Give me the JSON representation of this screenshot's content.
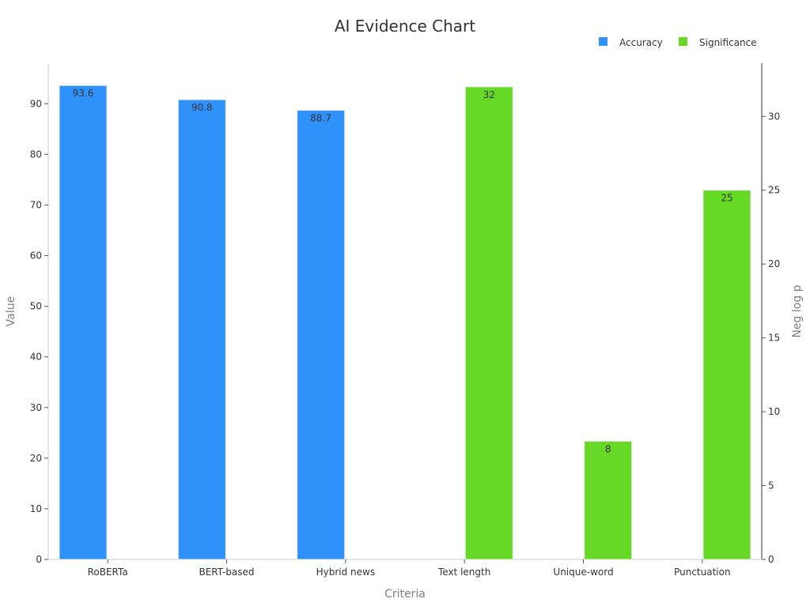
{
  "chart_data": {
    "type": "bar",
    "title": "AI Evidence Chart",
    "xlabel": "Criteria",
    "ylabel": "Value",
    "y2label": "Neg log p",
    "categories": [
      "RoBERTa",
      "BERT-based",
      "Hybrid news",
      "Text length",
      "Unique-word",
      "Punctuation"
    ],
    "series": [
      {
        "name": "Accuracy",
        "axis": "left",
        "color": "#2f91fa",
        "values": [
          93.6,
          90.8,
          88.7,
          null,
          null,
          null
        ],
        "labels": [
          "93.6",
          "90.8",
          "88.7",
          "",
          "",
          ""
        ]
      },
      {
        "name": "Significance",
        "axis": "right",
        "color": "#66d926",
        "values": [
          null,
          null,
          null,
          32,
          8,
          25
        ],
        "labels": [
          "",
          "",
          "",
          "32",
          "8",
          "25"
        ]
      }
    ],
    "ylim": [
      0,
      98
    ],
    "y2lim": [
      0,
      33.6
    ],
    "yticks": [
      0,
      10,
      20,
      30,
      40,
      50,
      60,
      70,
      80,
      90
    ],
    "y2ticks": [
      0,
      5,
      10,
      15,
      20,
      25,
      30
    ],
    "ytick_labels": [
      "0",
      "10",
      "20",
      "30",
      "40",
      "50",
      "60",
      "70",
      "80",
      "90"
    ],
    "y2tick_labels": [
      "0",
      "5",
      "10",
      "15",
      "20",
      "25",
      "30"
    ],
    "grid": false,
    "legend_position": "top-right"
  }
}
